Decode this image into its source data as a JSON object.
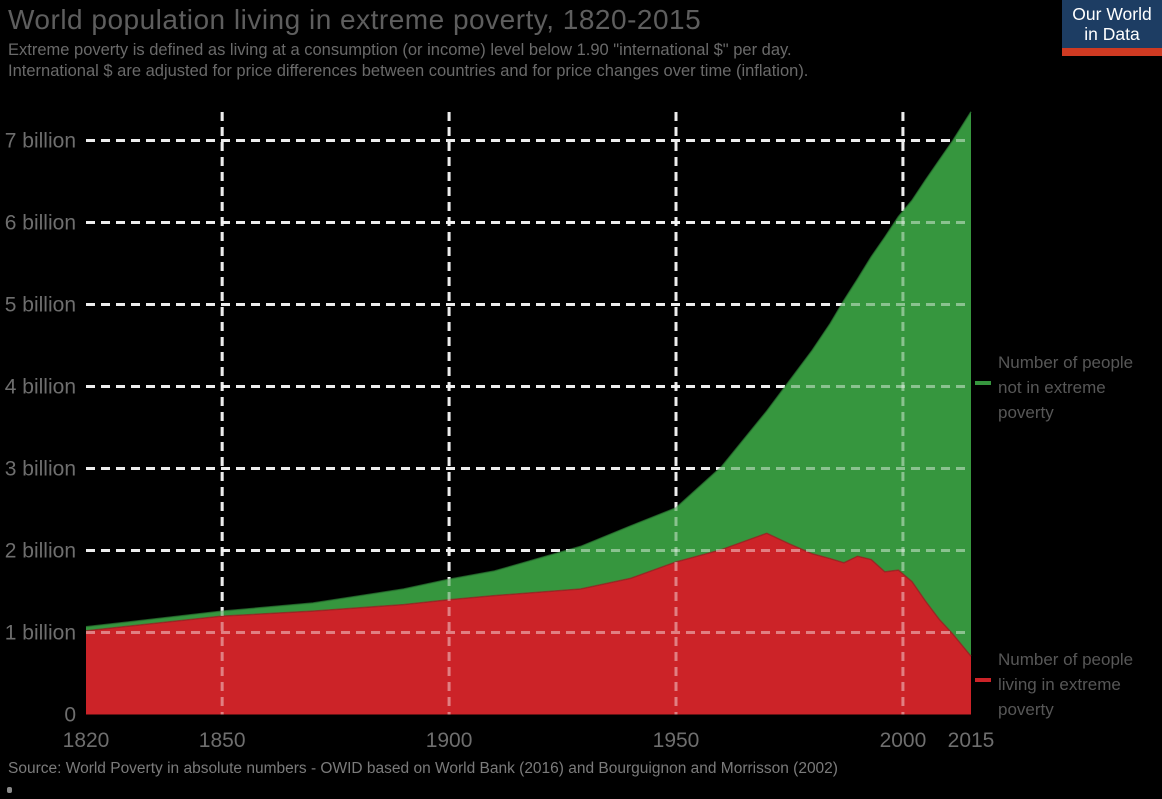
{
  "header": {
    "title": "World population living in extreme poverty, 1820-2015",
    "subtitle": "Extreme poverty is defined as living at a consumption (or income) level below 1.90 \"international $\" per day.\nInternational $ are adjusted for price differences between countries and for price changes over time (inflation)."
  },
  "logo": {
    "line1": "Our World",
    "line2": "in Data",
    "bg_color": "#1d3d63",
    "bar_color": "#cf3a22"
  },
  "legend": [
    {
      "label": "Number of people\nnot in extreme\npoverty",
      "color": "#36963e"
    },
    {
      "label": "Number of people\nliving in extreme\npoverty",
      "color": "#cc2328"
    }
  ],
  "source": {
    "text": "Source: World Poverty in absolute numbers - OWID based on World Bank (2016) and Bourguignon and Morrisson (2002)"
  },
  "chart_data": {
    "type": "area",
    "stacking": "stacked",
    "title": "World population living in extreme poverty, 1820-2015",
    "xlabel": "",
    "ylabel": "",
    "xlim": [
      1820,
      2015
    ],
    "ylim": [
      0,
      7.35
    ],
    "grid": "dashed",
    "legend_position": "right",
    "x": [
      1820,
      1850,
      1870,
      1890,
      1900,
      1910,
      1929,
      1940,
      1950,
      1960,
      1970,
      1975,
      1980,
      1984,
      1987,
      1990,
      1993,
      1996,
      1999,
      2002,
      2005,
      2008,
      2011,
      2015
    ],
    "series": [
      {
        "name": "Number of people living in extreme poverty",
        "color": "#cc2328",
        "edge_color": "#a01d22",
        "values": [
          1.02,
          1.2,
          1.26,
          1.34,
          1.4,
          1.45,
          1.53,
          1.66,
          1.86,
          2.01,
          2.21,
          2.08,
          1.96,
          1.9,
          1.85,
          1.93,
          1.89,
          1.74,
          1.76,
          1.62,
          1.38,
          1.16,
          0.98,
          0.71
        ]
      },
      {
        "name": "Number of people not in extreme poverty",
        "color": "#36963e",
        "edge_color": "#2c7c35",
        "values": [
          0.05,
          0.06,
          0.1,
          0.19,
          0.25,
          0.3,
          0.52,
          0.64,
          0.66,
          1.01,
          1.49,
          1.99,
          2.48,
          2.87,
          3.2,
          3.38,
          3.69,
          4.08,
          4.31,
          4.65,
          5.14,
          5.6,
          6.02,
          6.64
        ]
      }
    ],
    "axes": {
      "y_ticks": [
        {
          "value": 0,
          "label": "0"
        },
        {
          "value": 1,
          "label": "1 billion"
        },
        {
          "value": 2,
          "label": "2 billion"
        },
        {
          "value": 3,
          "label": "3 billion"
        },
        {
          "value": 4,
          "label": "4 billion"
        },
        {
          "value": 5,
          "label": "5 billion"
        },
        {
          "value": 6,
          "label": "6 billion"
        },
        {
          "value": 7,
          "label": "7 billion"
        }
      ],
      "x_ticks": [
        {
          "value": 1820,
          "label": "1820"
        },
        {
          "value": 1850,
          "label": "1850"
        },
        {
          "value": 1900,
          "label": "1900"
        },
        {
          "value": 1950,
          "label": "1950"
        },
        {
          "value": 2000,
          "label": "2000"
        },
        {
          "value": 2015,
          "label": "2015"
        }
      ],
      "h_gridlines": [
        1,
        2,
        3,
        4,
        5,
        6,
        7
      ],
      "v_gridlines": [
        1850,
        1900,
        1950,
        2000
      ],
      "gridline_color": "#e0e0e0",
      "tick_color": "#6e6e6e"
    }
  }
}
